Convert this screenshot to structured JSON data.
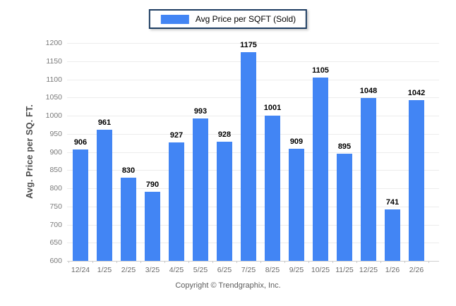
{
  "legend": {
    "label": "Avg Price per SQFT (Sold)"
  },
  "footer": {
    "copyright": "Copyright © Trendgraphix, Inc."
  },
  "colors": {
    "bar": "#4285f4",
    "legend_border": "#1c3c61",
    "grid": "#ececec",
    "axis_line": "#cfcfcf",
    "y_tick_label": "#7a7a7a",
    "x_tick_label": "#6b6b6b",
    "value_label": "#000000",
    "y_axis_title": "#4d4d4d",
    "copyright": "#5c5c5c"
  },
  "chart_data": {
    "type": "bar",
    "title": "",
    "legend": "Avg Price per SQFT (Sold)",
    "categories": [
      "12/24",
      "1/25",
      "2/25",
      "3/25",
      "4/25",
      "5/25",
      "6/25",
      "7/25",
      "8/25",
      "9/25",
      "10/25",
      "11/25",
      "12/25",
      "1/26",
      "2/26"
    ],
    "values": [
      906,
      961,
      830,
      790,
      927,
      993,
      928,
      1175,
      1001,
      909,
      1105,
      895,
      1048,
      741,
      1042
    ],
    "xlabel": "",
    "ylabel": "Avg. Price per SQ. FT.",
    "ylim": [
      600,
      1200
    ],
    "ytick_step": 50,
    "yticks": [
      600,
      650,
      700,
      750,
      800,
      850,
      900,
      950,
      1000,
      1050,
      1100,
      1150,
      1200
    ],
    "grid": true,
    "legend_position": "top-center",
    "value_labels": true
  }
}
